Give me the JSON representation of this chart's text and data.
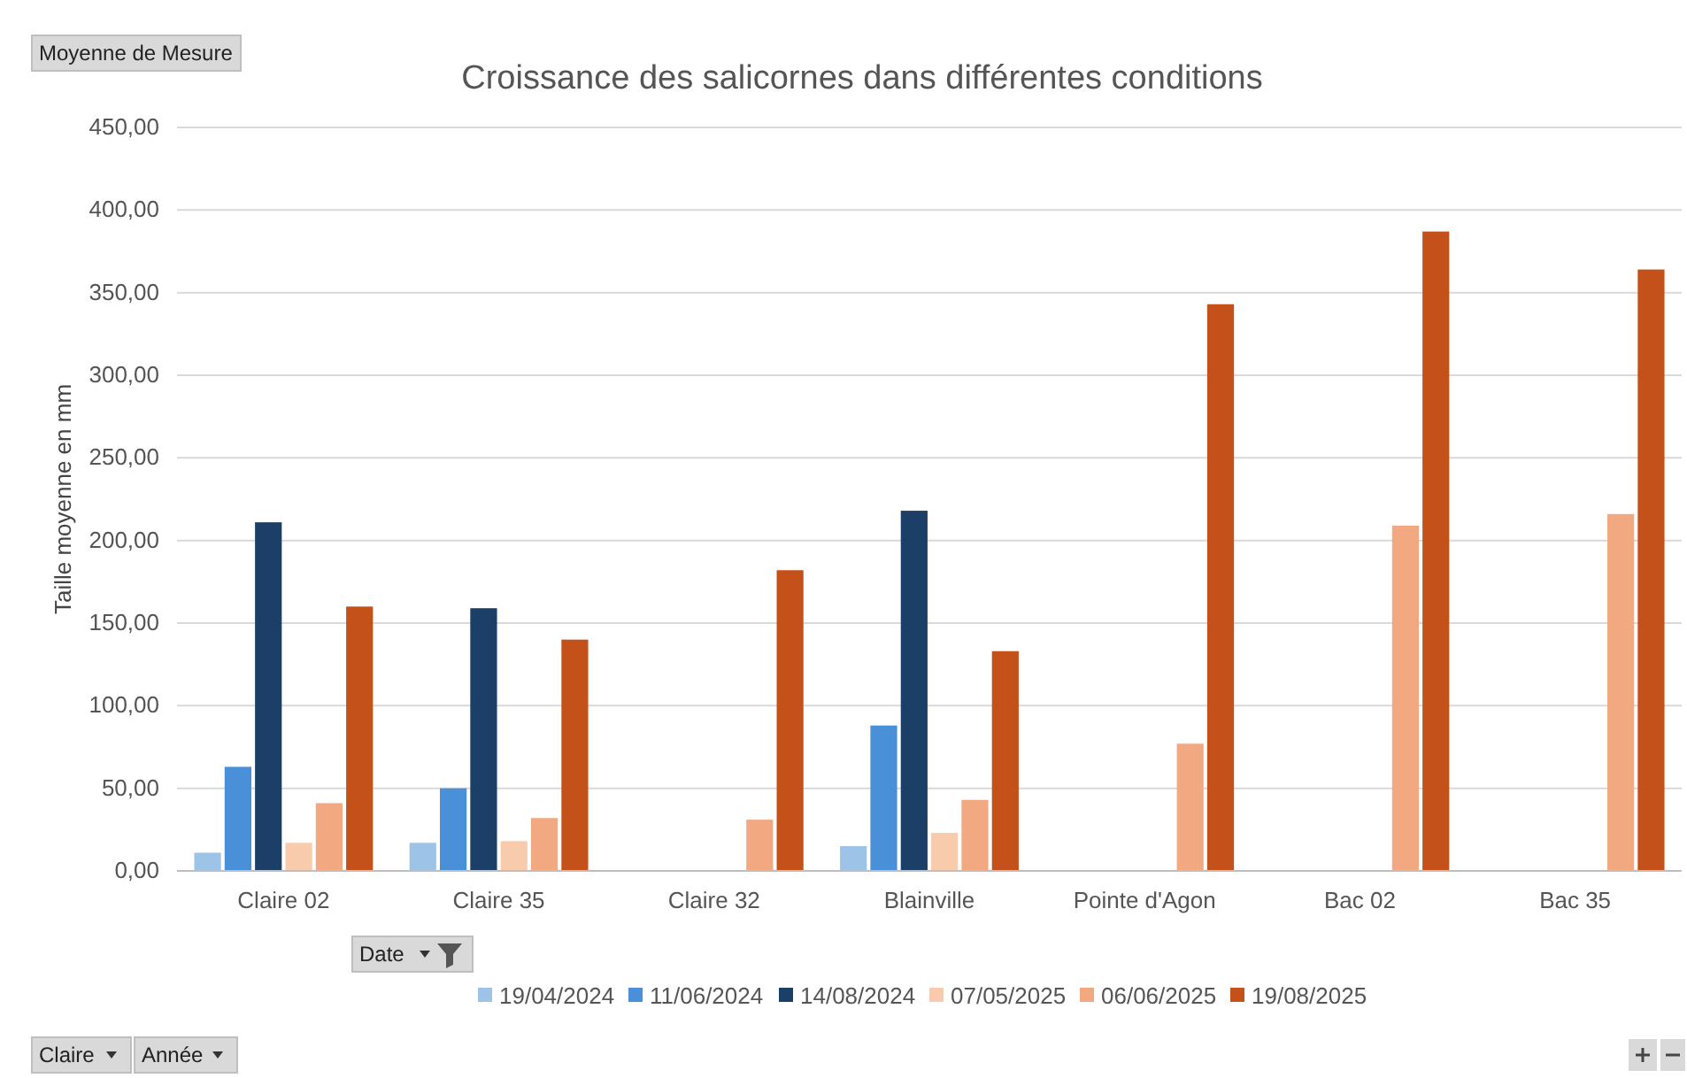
{
  "chart_data": {
    "type": "bar",
    "title": "Croissance des salicornes dans différentes conditions",
    "ylabel": "Taille moyenne en mm",
    "categories": [
      "Claire 02",
      "Claire 35",
      "Claire 32",
      "Blainville",
      "Pointe d'Agon",
      "Bac 02",
      "Bac 35"
    ],
    "series": [
      {
        "name": "19/04/2024",
        "color": "#9dc3e6",
        "values": [
          11,
          17,
          null,
          15,
          null,
          null,
          null
        ]
      },
      {
        "name": "11/06/2024",
        "color": "#4a90d9",
        "values": [
          63,
          50,
          null,
          88,
          null,
          null,
          null
        ]
      },
      {
        "name": "14/08/2024",
        "color": "#1b3f66",
        "values": [
          211,
          159,
          null,
          218,
          null,
          null,
          null
        ]
      },
      {
        "name": "07/05/2025",
        "color": "#f8cbad",
        "values": [
          17,
          18,
          null,
          23,
          null,
          null,
          null
        ]
      },
      {
        "name": "06/06/2025",
        "color": "#f2a982",
        "values": [
          41,
          32,
          31,
          43,
          77,
          209,
          216
        ]
      },
      {
        "name": "19/08/2025",
        "color": "#c4501a",
        "values": [
          160,
          140,
          182,
          133,
          343,
          387,
          364
        ]
      }
    ],
    "ylim": [
      0,
      450
    ],
    "yticks": [
      {
        "value": 0,
        "label": "0,00"
      },
      {
        "value": 50,
        "label": "50,00"
      },
      {
        "value": 100,
        "label": "100,00"
      },
      {
        "value": 150,
        "label": "150,00"
      },
      {
        "value": 200,
        "label": "200,00"
      },
      {
        "value": 250,
        "label": "250,00"
      },
      {
        "value": 300,
        "label": "300,00"
      },
      {
        "value": 350,
        "label": "350,00"
      },
      {
        "value": 400,
        "label": "400,00"
      },
      {
        "value": 450,
        "label": "450,00"
      }
    ],
    "grid": "y",
    "legend": "bottom",
    "annotations": [
      "Moyenne de Mesure",
      "Date",
      "Claire",
      "Année"
    ]
  }
}
